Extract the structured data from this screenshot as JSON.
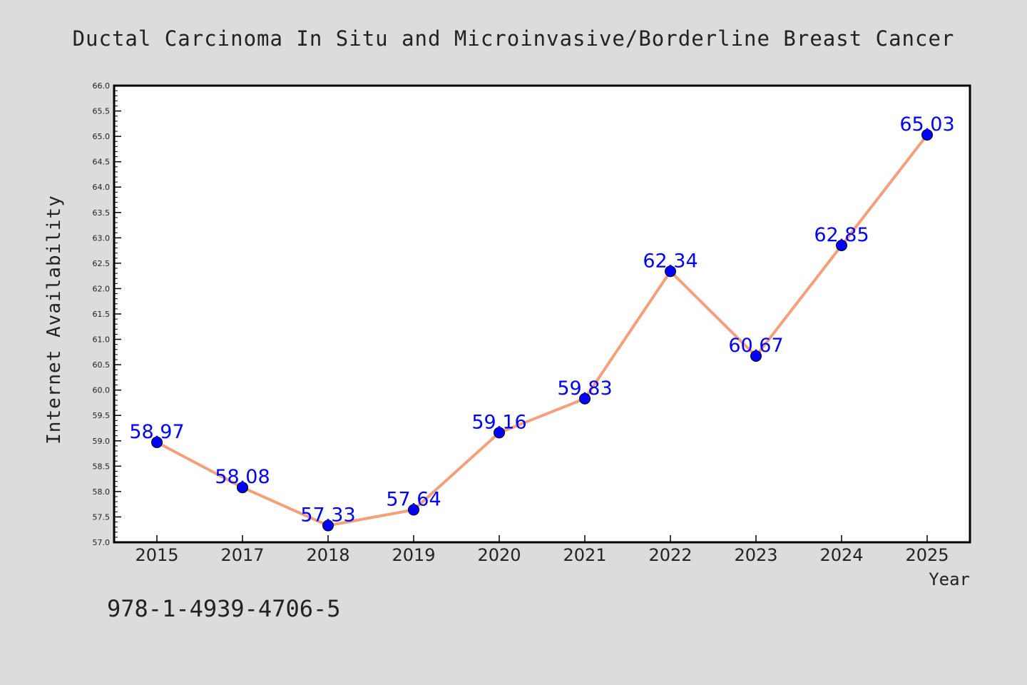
{
  "chart_data": {
    "type": "line",
    "title": "Ductal Carcinoma In Situ and Microinvasive/Borderline Breast Cancer",
    "xlabel": "Year",
    "ylabel": "Internet Availability",
    "categories": [
      "2015",
      "2017",
      "2018",
      "2019",
      "2020",
      "2021",
      "2022",
      "2023",
      "2024",
      "2025"
    ],
    "series": [
      {
        "values": [
          58.97,
          58.08,
          57.33,
          57.64,
          59.16,
          59.83,
          62.34,
          60.67,
          62.85,
          65.03
        ]
      }
    ],
    "data_labels": [
      "58.97",
      "58.08",
      "57.33",
      "57.64",
      "59.16",
      "59.83",
      "62.34",
      "60.67",
      "62.85",
      "65.03"
    ],
    "ylim": [
      57.0,
      66.0
    ],
    "yticks": [
      "57.0",
      "57.5",
      "58.0",
      "58.5",
      "59.0",
      "59.5",
      "60.0",
      "60.5",
      "61.0",
      "61.5",
      "62.0",
      "62.5",
      "63.0",
      "63.5",
      "64.0",
      "64.5",
      "65.0",
      "65.5",
      "66.0"
    ],
    "grid": false,
    "annotation": "978-1-4939-4706-5",
    "colors": {
      "background": "#dcdcdc",
      "plot_background": "#ffffff",
      "line": "#f4a07a",
      "marker": "#0000ff",
      "data_label": "#0000ff",
      "text": "#222222"
    }
  }
}
